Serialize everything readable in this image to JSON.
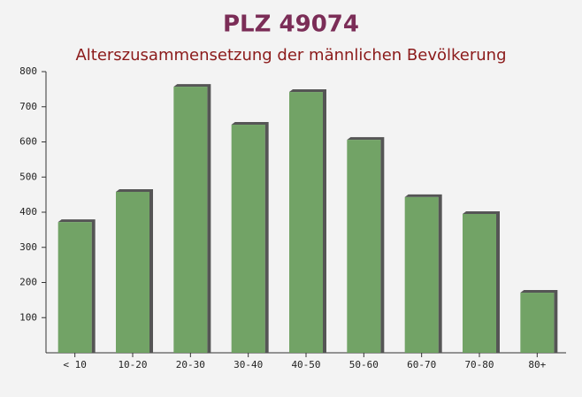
{
  "chart_data": {
    "type": "bar",
    "title": "PLZ 49074",
    "subtitle": "Alterszusammensetzung der männlichen Bevölkerung",
    "categories": [
      "< 10",
      "10-20",
      "20-30",
      "30-40",
      "40-50",
      "50-60",
      "60-70",
      "70-80",
      "80+"
    ],
    "values": [
      372,
      458,
      757,
      649,
      742,
      606,
      443,
      395,
      171
    ],
    "color": "#6a9e5e",
    "ylim": [
      0,
      800
    ],
    "yticks": [
      100,
      200,
      300,
      400,
      500,
      600,
      700,
      800
    ],
    "grid": false
  }
}
